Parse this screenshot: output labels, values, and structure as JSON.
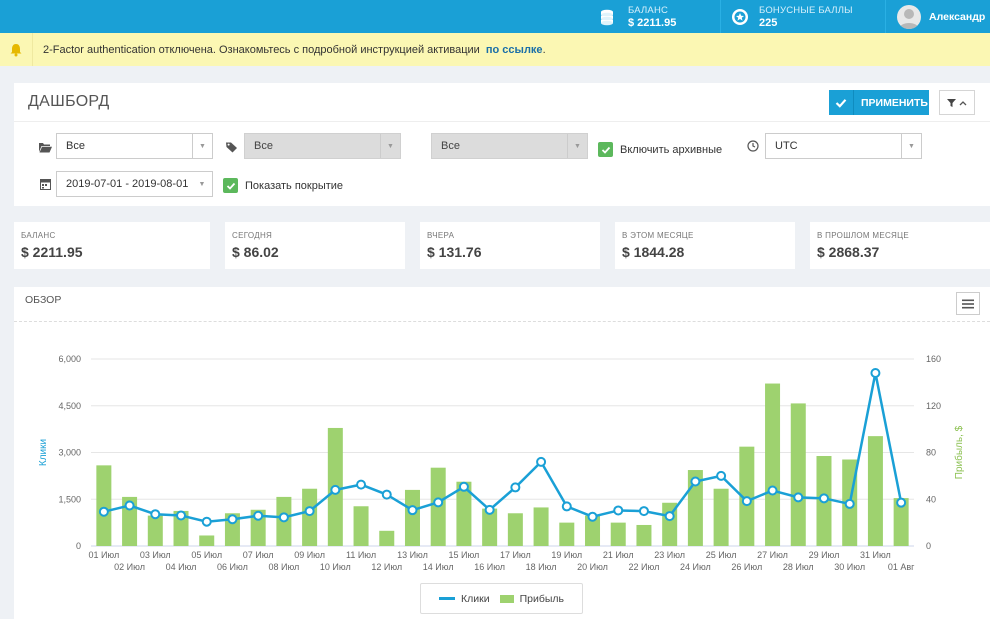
{
  "topbar": {
    "balance_label": "БАЛАНС",
    "balance_value": "$ 2211.95",
    "bonus_label": "БОНУСНЫЕ БАЛЛЫ",
    "bonus_value": "225",
    "user_name": "Александр",
    "color": "#1aa0d6"
  },
  "alert": {
    "text": "2-Factor authentication отключена. Ознакомьтесь с подробной инструкцией активации",
    "link": "по ссылке",
    "suffix": "."
  },
  "header": {
    "title": "ДАШБОРД",
    "apply_label": "ПРИМЕНИТЬ"
  },
  "filters": {
    "folder_select": "Все",
    "tag_select": "Все",
    "third_select": "Все",
    "archive_label": "Включить архивные",
    "timezone_select": "UTC",
    "date_range": "2019-07-01 - 2019-08-01",
    "coverage_label": "Показать покрытие"
  },
  "stats": [
    {
      "label": "БАЛАНС",
      "value": "$ 2211.95"
    },
    {
      "label": "СЕГОДНЯ",
      "value": "$ 86.02"
    },
    {
      "label": "ВЧЕРА",
      "value": "$ 131.76"
    },
    {
      "label": "В ЭТОМ МЕСЯЦЕ",
      "value": "$ 1844.28"
    },
    {
      "label": "В ПРОШЛОМ МЕСЯЦЕ",
      "value": "$ 2868.37"
    }
  ],
  "overview": {
    "title": "ОБЗОР",
    "legend_clicks": "Клики",
    "legend_profit": "Прибыль"
  },
  "chart_data": {
    "type": "bar+line",
    "categories": [
      "01 Июл",
      "02 Июл",
      "03 Июл",
      "04 Июл",
      "05 Июл",
      "06 Июл",
      "07 Июл",
      "08 Июл",
      "09 Июл",
      "10 Июл",
      "11 Июл",
      "12 Июл",
      "13 Июл",
      "14 Июл",
      "15 Июл",
      "16 Июл",
      "17 Июл",
      "18 Июл",
      "19 Июл",
      "20 Июл",
      "21 Июл",
      "22 Июл",
      "23 Июл",
      "24 Июл",
      "25 Июл",
      "26 Июл",
      "27 Июл",
      "28 Июл",
      "29 Июл",
      "30 Июл",
      "31 Июл",
      "01 Авг"
    ],
    "series": [
      {
        "name": "Клики",
        "type": "line",
        "axis": "left",
        "color": "#1aa0d6",
        "values": [
          1100,
          1300,
          1020,
          980,
          780,
          860,
          970,
          920,
          1120,
          1800,
          1970,
          1650,
          1150,
          1400,
          1900,
          1160,
          1880,
          2700,
          1270,
          940,
          1140,
          1120,
          960,
          2070,
          2250,
          1440,
          1780,
          1560,
          1530,
          1350,
          5550,
          1390
        ]
      },
      {
        "name": "Прибыль",
        "type": "bar",
        "axis": "right",
        "color": "#9ed26f",
        "values": [
          69,
          42,
          26,
          30,
          9,
          28,
          31,
          42,
          49,
          101,
          34,
          13,
          48,
          67,
          55,
          32,
          28,
          33,
          20,
          26,
          20,
          18,
          37,
          65,
          49,
          85,
          139,
          122,
          77,
          74,
          94,
          41
        ]
      }
    ],
    "ylabel": "Клики",
    "ylabel_right": "Прибыль, $",
    "yticks_left": [
      "6,000",
      "4,500",
      "3,000",
      "1,500",
      "0"
    ],
    "yticks_right": [
      "160",
      "120",
      "80",
      "40",
      "0"
    ],
    "ylim": [
      0,
      6000
    ],
    "ylim_right": [
      0,
      160
    ],
    "grid": true,
    "legend": "bottom-center"
  }
}
